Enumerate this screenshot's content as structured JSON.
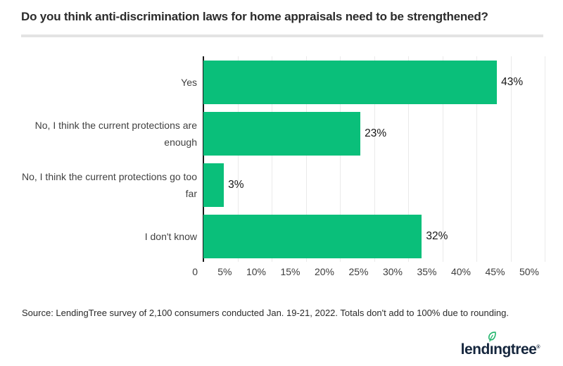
{
  "title": "Do you think anti-discrimination laws for home appraisals need to be strengthened?",
  "source_note": "Source: LendingTree survey of 2,100 consumers conducted Jan. 19-21, 2022. Totals don't add to 100% due to rounding.",
  "logo": {
    "name": "lendingtree",
    "pre": "lend",
    "i": "ı",
    "post": "ngtree",
    "reg": "®"
  },
  "colors": {
    "bar_green": "#0abf7a",
    "axis": "#1a1a1a",
    "gridline": "#eaeaea",
    "logo_navy": "#15263d",
    "leaf_green": "#1fb46a"
  },
  "chart_data": {
    "type": "bar",
    "orientation": "horizontal",
    "title": "Do you think anti-discrimination laws for home appraisals need to be strengthened?",
    "categories": [
      "Yes",
      "No, I think the current protections are enough",
      "No, I think the current protections go too far",
      "I don't know"
    ],
    "categories_lines": [
      [
        "Yes"
      ],
      [
        "No, I think the current protections are",
        "enough"
      ],
      [
        "No, I think the current protections go too",
        "far"
      ],
      [
        "I don't know"
      ]
    ],
    "values": [
      43,
      23,
      3,
      32
    ],
    "value_labels": [
      "43%",
      "23%",
      "3%",
      "32%"
    ],
    "xlim": [
      0,
      50
    ],
    "x_tick_values": [
      0,
      5,
      10,
      15,
      20,
      25,
      30,
      35,
      40,
      45,
      50
    ],
    "x_tick_labels": [
      "0",
      "5%",
      "10%",
      "15%",
      "20%",
      "25%",
      "30%",
      "35%",
      "40%",
      "45%",
      "50%"
    ],
    "grid": true,
    "legend": false,
    "bar_color": "#0abf7a"
  }
}
